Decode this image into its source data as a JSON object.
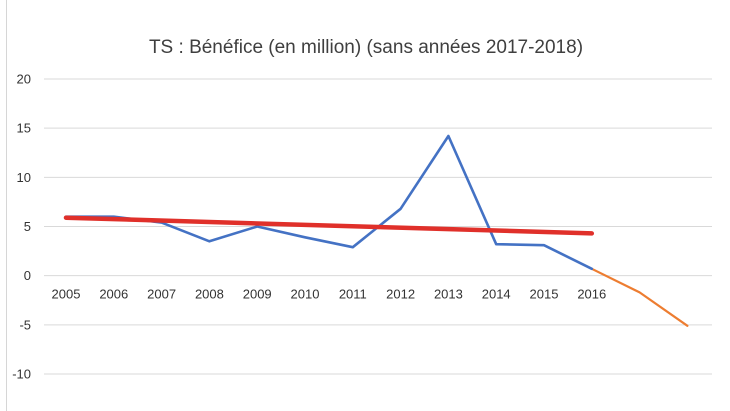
{
  "chart_data": {
    "type": "line",
    "title": "TS : Bénéfice (en million) (sans années 2017-2018)",
    "xlabel": "",
    "ylabel": "",
    "ylim": [
      -10,
      20
    ],
    "yticks": [
      20,
      15,
      10,
      5,
      0,
      -5,
      -10
    ],
    "categories": [
      "2005",
      "2006",
      "2007",
      "2008",
      "2009",
      "2010",
      "2011",
      "2012",
      "2013",
      "2014",
      "2015",
      "2016"
    ],
    "grid": true,
    "legend": "none",
    "series": [
      {
        "role": "actual",
        "color": "#4472c4",
        "x": [
          0,
          1,
          2,
          3,
          4,
          5,
          6,
          7,
          8,
          9,
          10,
          11
        ],
        "values": [
          6.0,
          6.0,
          5.4,
          3.5,
          5.0,
          3.9,
          2.9,
          6.8,
          14.2,
          3.2,
          3.1,
          0.7
        ]
      },
      {
        "role": "forecast",
        "color": "#ed7d31",
        "x": [
          11,
          12,
          13
        ],
        "values": [
          0.7,
          -1.7,
          -5.1
        ]
      },
      {
        "role": "trend",
        "color": "#e0302a",
        "x": [
          0,
          11
        ],
        "values": [
          5.9,
          4.3
        ]
      }
    ]
  }
}
